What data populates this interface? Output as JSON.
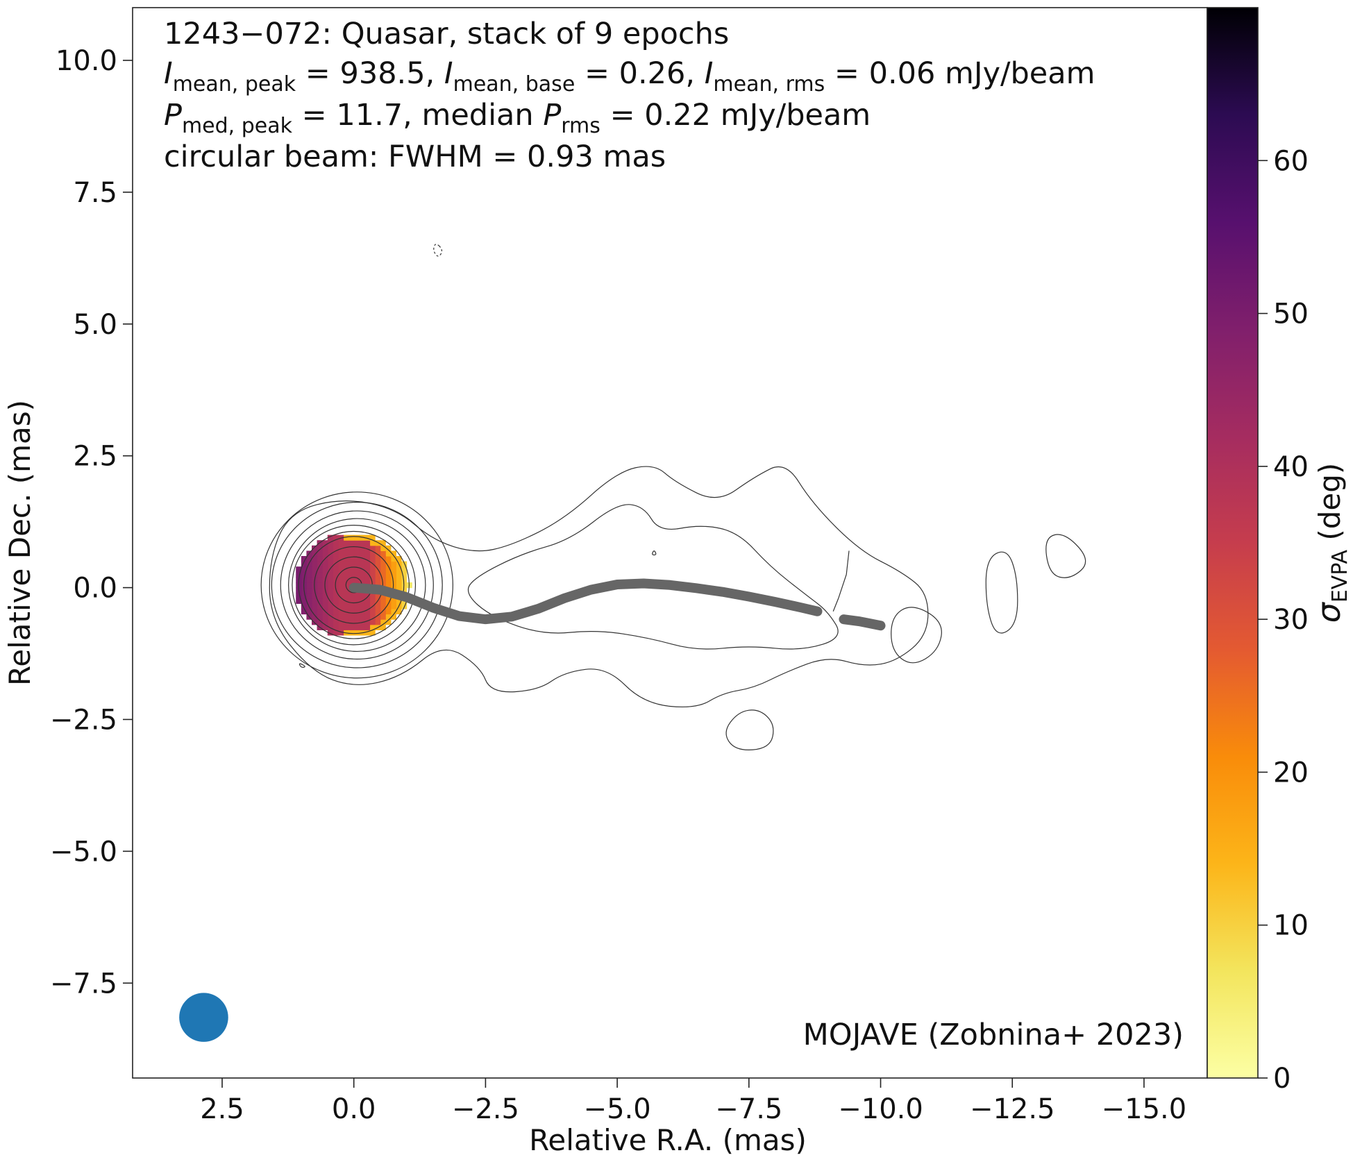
{
  "chart_data": {
    "type": "heatmap",
    "title_lines": {
      "line1": "1243−072: Quasar, stack of 9 epochs",
      "line2": {
        "i_peak_label": "I",
        "i_peak_sub": "mean, peak",
        "i_peak_value": " = 938.5, ",
        "i_base_label": "I",
        "i_base_sub": "mean, base",
        "i_base_value": " = 0.26, ",
        "i_rms_label": "I",
        "i_rms_sub": "mean, rms",
        "i_rms_value": " = 0.06 mJy/beam"
      },
      "line3": {
        "p_peak_label": "P",
        "p_peak_sub": "med, peak",
        "p_peak_value": " = 11.7, median ",
        "p_rms_label": "P",
        "p_rms_sub": "rms",
        "p_rms_value": " = 0.22 mJy/beam"
      },
      "line4": "circular beam: FWHM = 0.93 mas"
    },
    "credit": "MOJAVE (Zobnina+ 2023)",
    "xlabel": "Relative R.A. (mas)",
    "ylabel": "Relative Dec. (mas)",
    "xlim": [
      4.2,
      -16.2
    ],
    "ylim": [
      -9.3,
      11.0
    ],
    "xticks": [
      2.5,
      0.0,
      -2.5,
      -5.0,
      -7.5,
      -10.0,
      -12.5,
      -15.0
    ],
    "xtick_labels": [
      "2.5",
      "0.0",
      "−2.5",
      "−5.0",
      "−7.5",
      "−10.0",
      "−12.5",
      "−15.0"
    ],
    "yticks": [
      10.0,
      7.5,
      5.0,
      2.5,
      0.0,
      -2.5,
      -5.0,
      -7.5
    ],
    "ytick_labels": [
      "10.0",
      "7.5",
      "5.0",
      "2.5",
      "0.0",
      "−2.5",
      "−5.0",
      "−7.5"
    ],
    "colorbar": {
      "label": "σ",
      "label_sub": "EVPA",
      "label_suffix": " (deg)",
      "range": [
        0,
        70
      ],
      "colormap": "inferno_r",
      "ticks": [
        0,
        10,
        20,
        30,
        40,
        50,
        60
      ],
      "tick_labels": [
        "0",
        "10",
        "20",
        "30",
        "40",
        "50",
        "60"
      ]
    },
    "beam": {
      "center": [
        2.85,
        -8.15
      ],
      "fwhm_mas": 0.93,
      "color": "#1f77b4"
    },
    "ridge_line": {
      "color": "#666666",
      "segments": [
        [
          [
            0.0,
            0.0
          ],
          [
            -0.5,
            -0.04
          ],
          [
            -1.0,
            -0.18
          ],
          [
            -1.5,
            -0.38
          ],
          [
            -2.0,
            -0.54
          ],
          [
            -2.5,
            -0.6
          ],
          [
            -3.0,
            -0.55
          ],
          [
            -3.5,
            -0.4
          ],
          [
            -4.0,
            -0.2
          ],
          [
            -4.5,
            -0.04
          ],
          [
            -5.0,
            0.06
          ],
          [
            -5.5,
            0.08
          ],
          [
            -6.0,
            0.05
          ],
          [
            -6.5,
            -0.01
          ],
          [
            -7.0,
            -0.08
          ],
          [
            -7.5,
            -0.17
          ],
          [
            -8.0,
            -0.27
          ],
          [
            -8.5,
            -0.38
          ],
          [
            -8.8,
            -0.45
          ]
        ],
        [
          [
            -9.3,
            -0.6
          ],
          [
            -9.6,
            -0.64
          ],
          [
            -10.0,
            -0.72
          ]
        ]
      ]
    },
    "evpa_spread_map": {
      "extent_mas": {
        "ra_east": 1.1,
        "ra_west": -1.05,
        "dec_north": 1.05,
        "dec_south": -0.95
      },
      "center_value_deg": 38,
      "edge_value_deg": 8,
      "west_edge_value_deg": 6,
      "east_edge_value_deg": 60
    },
    "contours": {
      "color": "#333333",
      "core_center": [
        0.0,
        0.05
      ],
      "core_radii_mas": [
        0.15,
        0.35,
        0.55,
        0.75,
        0.95,
        1.05,
        1.17,
        1.3,
        1.45,
        1.62,
        1.82
      ],
      "jet_outer": [
        [
          1.6,
          0.6
        ],
        [
          1.2,
          1.45
        ],
        [
          0.2,
          1.7
        ],
        [
          -0.8,
          1.5
        ],
        [
          -1.5,
          0.9
        ],
        [
          -2.3,
          0.65
        ],
        [
          -3.0,
          0.8
        ],
        [
          -4.0,
          1.3
        ],
        [
          -5.0,
          2.2
        ],
        [
          -5.7,
          2.35
        ],
        [
          -6.1,
          2.0
        ],
        [
          -6.9,
          1.6
        ],
        [
          -7.6,
          2.1
        ],
        [
          -8.2,
          2.4
        ],
        [
          -8.7,
          1.6
        ],
        [
          -9.6,
          0.7
        ],
        [
          -10.4,
          0.3
        ],
        [
          -10.9,
          -0.1
        ],
        [
          -10.9,
          -0.9
        ],
        [
          -10.3,
          -1.4
        ],
        [
          -9.7,
          -1.5
        ],
        [
          -9.0,
          -1.3
        ],
        [
          -8.2,
          -1.6
        ],
        [
          -7.6,
          -1.9
        ],
        [
          -7.0,
          -2.0
        ],
        [
          -6.5,
          -2.3
        ],
        [
          -5.5,
          -2.2
        ],
        [
          -4.8,
          -1.5
        ],
        [
          -4.0,
          -1.6
        ],
        [
          -3.5,
          -1.95
        ],
        [
          -2.6,
          -2.0
        ],
        [
          -2.4,
          -1.5
        ],
        [
          -1.7,
          -1.05
        ],
        [
          -0.9,
          -1.7
        ],
        [
          0.0,
          -1.9
        ],
        [
          0.8,
          -1.6
        ],
        [
          1.6,
          -0.6
        ]
      ],
      "jet_inner": [
        [
          -2.3,
          0.2
        ],
        [
          -3.2,
          0.65
        ],
        [
          -4.1,
          0.9
        ],
        [
          -5.0,
          1.6
        ],
        [
          -5.5,
          1.55
        ],
        [
          -5.8,
          1.05
        ],
        [
          -6.6,
          1.2
        ],
        [
          -7.3,
          1.05
        ],
        [
          -7.9,
          0.4
        ],
        [
          -8.6,
          -0.15
        ],
        [
          -9.0,
          -0.45
        ],
        [
          -9.3,
          -0.95
        ],
        [
          -8.5,
          -1.2
        ],
        [
          -7.5,
          -1.1
        ],
        [
          -6.5,
          -1.2
        ],
        [
          -5.6,
          -0.95
        ],
        [
          -4.6,
          -0.8
        ],
        [
          -3.6,
          -0.9
        ],
        [
          -2.6,
          -0.55
        ],
        [
          -2.1,
          -0.1
        ]
      ],
      "islands": [
        [
          [
            -12.4,
            0.75
          ],
          [
            -12.0,
            0.55
          ],
          [
            -12.0,
            -0.35
          ],
          [
            -12.2,
            -0.95
          ],
          [
            -12.6,
            -0.7
          ],
          [
            -12.6,
            0.2
          ]
        ],
        [
          [
            -13.5,
            1.05
          ],
          [
            -13.1,
            0.95
          ],
          [
            -13.2,
            0.25
          ],
          [
            -13.6,
            0.15
          ],
          [
            -14.0,
            0.5
          ]
        ],
        [
          [
            -10.6,
            -0.3
          ],
          [
            -10.2,
            -0.55
          ],
          [
            -10.2,
            -1.2
          ],
          [
            -10.6,
            -1.5
          ],
          [
            -11.1,
            -1.2
          ],
          [
            -11.2,
            -0.65
          ]
        ],
        [
          [
            -7.3,
            -2.35
          ],
          [
            -7.0,
            -2.75
          ],
          [
            -7.25,
            -3.1
          ],
          [
            -7.9,
            -3.05
          ],
          [
            -8.0,
            -2.6
          ],
          [
            -7.7,
            -2.3
          ]
        ],
        [
          [
            -9.4,
            0.7
          ],
          [
            -9.35,
            0.25
          ],
          [
            -9.2,
            -0.2
          ],
          [
            -9.1,
            -0.45
          ]
        ],
        [
          [
            -5.7,
            0.72
          ],
          [
            -5.65,
            0.62
          ],
          [
            -5.75,
            0.62
          ]
        ],
        [
          [
            1.05,
            -1.42
          ],
          [
            1.0,
            -1.52
          ],
          [
            0.9,
            -1.5
          ]
        ]
      ],
      "dashed_islands": [
        [
          [
            -1.55,
            6.55
          ],
          [
            -1.5,
            6.4
          ],
          [
            -1.6,
            6.25
          ],
          [
            -1.7,
            6.4
          ]
        ]
      ]
    }
  }
}
